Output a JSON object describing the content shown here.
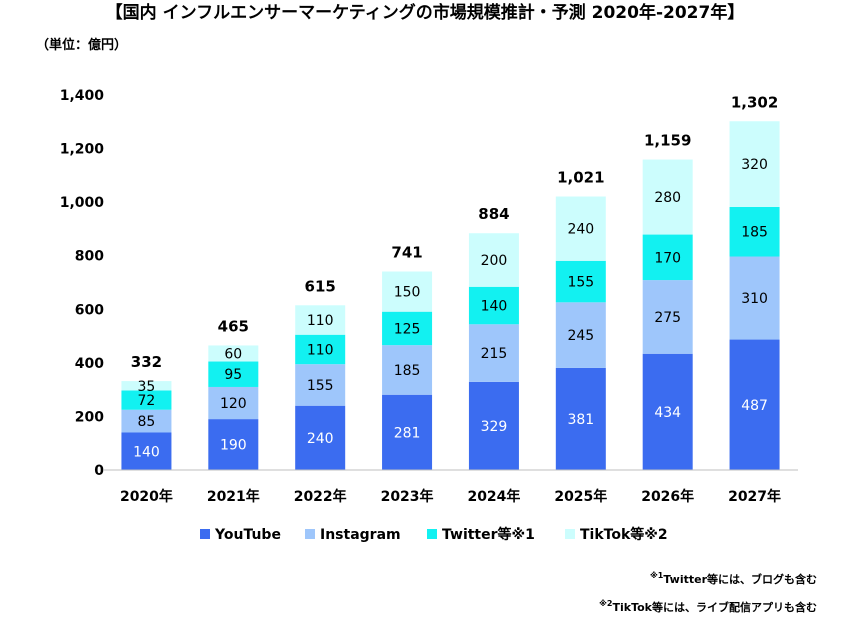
{
  "chart_data": {
    "type": "bar",
    "stacked": true,
    "title": "【国内 インフルエンサーマーケティングの市場規模推計・予測 2020年-2027年】",
    "unit_label": "（単位：億円）",
    "categories": [
      "2020年",
      "2021年",
      "2022年",
      "2023年",
      "2024年",
      "2025年",
      "2026年",
      "2027年"
    ],
    "ylim": [
      0,
      1400
    ],
    "yticks": [
      0,
      200,
      400,
      600,
      800,
      1000,
      1200,
      1400
    ],
    "ytick_labels": [
      "0",
      "200",
      "400",
      "600",
      "800",
      "1,000",
      "1,200",
      "1,400"
    ],
    "totals": [
      "332",
      "465",
      "615",
      "741",
      "884",
      "1,021",
      "1,159",
      "1,302"
    ],
    "grid": false,
    "legend_position": "bottom",
    "series": [
      {
        "name": "YouTube",
        "color": "#3b6cf0",
        "label_color": "#ffffff",
        "values": [
          140,
          190,
          240,
          281,
          329,
          381,
          434,
          487
        ]
      },
      {
        "name": "Instagram",
        "color": "#9ec6fb",
        "label_color": "#000000",
        "values": [
          85,
          120,
          155,
          185,
          215,
          245,
          275,
          310
        ]
      },
      {
        "name": "Twitter等※1",
        "color": "#12f1f1",
        "label_color": "#000000",
        "values": [
          72,
          95,
          110,
          125,
          140,
          155,
          170,
          185
        ]
      },
      {
        "name": "TikTok等※2",
        "color": "#ccfdfd",
        "label_color": "#000000",
        "values": [
          35,
          60,
          110,
          150,
          200,
          240,
          280,
          320
        ]
      }
    ]
  },
  "notes": [
    {
      "mark": "※1",
      "text": "Twitter等には、ブログも含む"
    },
    {
      "mark": "※2",
      "text": "TikTok等には、ライブ配信アプリも含む"
    }
  ]
}
